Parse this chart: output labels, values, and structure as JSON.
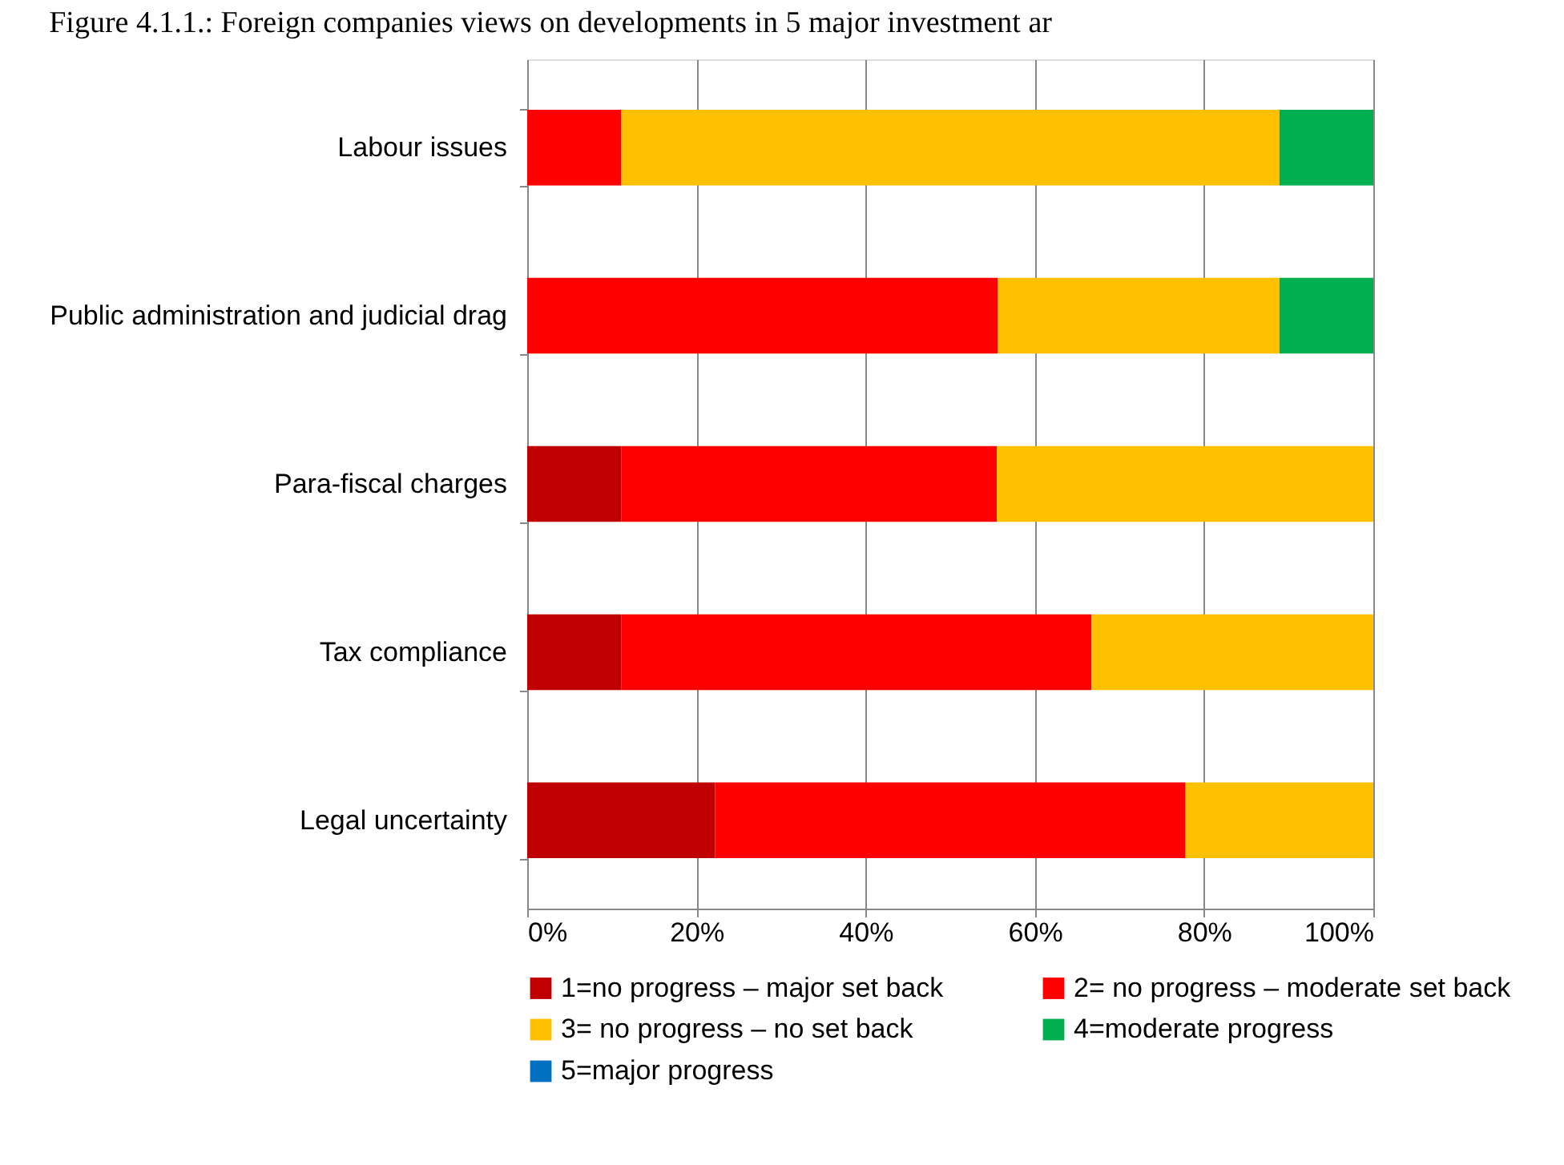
{
  "chart_data": {
    "type": "bar",
    "orientation": "horizontal",
    "stacked": true,
    "title": "Figure 4.1.1.: Foreign companies views on developments in 5 major investment ar",
    "categories": [
      "Labour issues",
      "Public administration and judicial drag",
      "Para-fiscal charges",
      "Tax compliance",
      "Legal uncertainty"
    ],
    "series": [
      {
        "name": "1=no progress – major set back",
        "color": "#c00000",
        "values": [
          0,
          0,
          11.1,
          11.1,
          22.2
        ]
      },
      {
        "name": "2= no progress – moderate set back",
        "color": "#ff0000",
        "values": [
          11.1,
          55.6,
          44.4,
          55.6,
          55.6
        ]
      },
      {
        "name": "3= no progress – no set back",
        "color": "#ffc000",
        "values": [
          77.8,
          33.3,
          44.5,
          33.3,
          22.2
        ]
      },
      {
        "name": "4=moderate progress",
        "color": "#00b050",
        "values": [
          11.1,
          11.1,
          0,
          0,
          0
        ]
      },
      {
        "name": "5=major progress",
        "color": "#0070c0",
        "values": [
          0,
          0,
          0,
          0,
          0
        ]
      }
    ],
    "xlim": [
      0,
      100
    ],
    "xticks": [
      {
        "value": 0,
        "label": "0%"
      },
      {
        "value": 20,
        "label": "20%"
      },
      {
        "value": 40,
        "label": "40%"
      },
      {
        "value": 60,
        "label": "60%"
      },
      {
        "value": 80,
        "label": "80%"
      },
      {
        "value": 100,
        "label": "100%"
      }
    ],
    "grid": "x",
    "legend": "bottom"
  }
}
